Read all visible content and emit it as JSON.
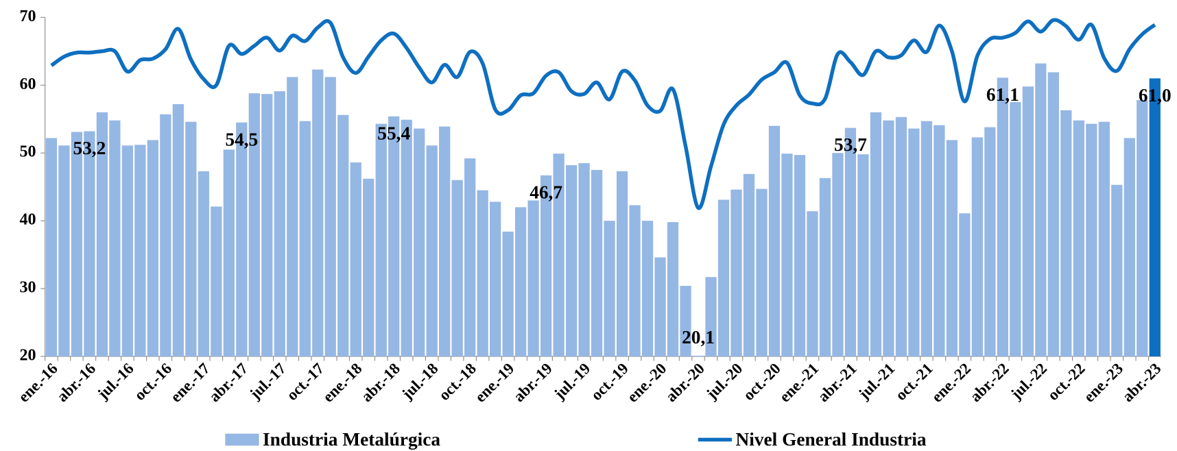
{
  "chart_data": {
    "type": "bar_line",
    "categories": [
      "ene.-16",
      null,
      null,
      "abr.-16",
      null,
      null,
      "jul.-16",
      null,
      null,
      "oct.-16",
      null,
      null,
      "ene.-17",
      null,
      null,
      "abr.-17",
      null,
      null,
      "jul.-17",
      null,
      null,
      "oct.-17",
      null,
      null,
      "ene.-18",
      null,
      null,
      "abr.-18",
      null,
      null,
      "jul.-18",
      null,
      null,
      "oct.-18",
      null,
      null,
      "ene.-19",
      null,
      null,
      "abr.-19",
      null,
      null,
      "jul.-19",
      null,
      null,
      "oct.-19",
      null,
      null,
      "ene.-20",
      null,
      null,
      "abr.-20",
      null,
      null,
      "jul.-20",
      null,
      null,
      "oct.-20",
      null,
      null,
      "ene.-21",
      null,
      null,
      "abr.-21",
      null,
      null,
      "jul.-21",
      null,
      null,
      "oct.-21",
      null,
      null,
      "ene.-22",
      null,
      null,
      "abr.-22",
      null,
      null,
      "jul.-22",
      null,
      null,
      "oct.-22",
      null,
      null,
      "ene.-23",
      null,
      null,
      "abr.-23"
    ],
    "series": [
      {
        "name": "Industria Metalúrgica",
        "kind": "bar",
        "color": "#95b7e4",
        "colors": [
          "#95b7e4",
          "#95b7e4",
          "#95b7e4",
          "#95b7e4",
          "#95b7e4",
          "#95b7e4",
          "#95b7e4",
          "#95b7e4",
          "#95b7e4",
          "#95b7e4",
          "#95b7e4",
          "#95b7e4",
          "#95b7e4",
          "#95b7e4",
          "#95b7e4",
          "#95b7e4",
          "#95b7e4",
          "#95b7e4",
          "#95b7e4",
          "#95b7e4",
          "#95b7e4",
          "#95b7e4",
          "#95b7e4",
          "#95b7e4",
          "#95b7e4",
          "#95b7e4",
          "#95b7e4",
          "#95b7e4",
          "#95b7e4",
          "#95b7e4",
          "#95b7e4",
          "#95b7e4",
          "#95b7e4",
          "#95b7e4",
          "#95b7e4",
          "#95b7e4",
          "#95b7e4",
          "#95b7e4",
          "#95b7e4",
          "#95b7e4",
          "#95b7e4",
          "#95b7e4",
          "#95b7e4",
          "#95b7e4",
          "#95b7e4",
          "#95b7e4",
          "#95b7e4",
          "#95b7e4",
          "#95b7e4",
          "#95b7e4",
          "#95b7e4",
          "#95b7e4",
          "#95b7e4",
          "#95b7e4",
          "#95b7e4",
          "#95b7e4",
          "#95b7e4",
          "#95b7e4",
          "#95b7e4",
          "#95b7e4",
          "#95b7e4",
          "#95b7e4",
          "#95b7e4",
          "#95b7e4",
          "#95b7e4",
          "#95b7e4",
          "#95b7e4",
          "#95b7e4",
          "#95b7e4",
          "#95b7e4",
          "#95b7e4",
          "#95b7e4",
          "#95b7e4",
          "#95b7e4",
          "#95b7e4",
          "#95b7e4",
          "#95b7e4",
          "#95b7e4",
          "#95b7e4",
          "#95b7e4",
          "#95b7e4",
          "#95b7e4",
          "#95b7e4",
          "#95b7e4",
          "#95b7e4",
          "#95b7e4",
          "#95b7e4",
          "#0e6fc0"
        ],
        "values": [
          52.2,
          51.1,
          53.1,
          53.2,
          56.0,
          54.8,
          51.1,
          51.2,
          51.9,
          55.7,
          57.2,
          54.6,
          47.3,
          42.1,
          50.5,
          54.5,
          58.8,
          58.7,
          59.1,
          61.2,
          54.7,
          62.3,
          61.2,
          55.6,
          48.6,
          46.2,
          54.3,
          55.4,
          54.9,
          53.6,
          51.1,
          53.9,
          46.0,
          49.2,
          44.5,
          42.8,
          38.4,
          42.0,
          43.0,
          46.7,
          49.9,
          48.2,
          48.5,
          47.5,
          40.0,
          47.3,
          42.3,
          40.0,
          34.6,
          39.8,
          30.4,
          20.1,
          31.7,
          43.1,
          44.6,
          46.9,
          44.7,
          54.0,
          49.9,
          49.7,
          41.4,
          46.3,
          50.0,
          53.7,
          49.8,
          56.0,
          54.8,
          55.3,
          53.6,
          54.7,
          54.1,
          51.9,
          41.1,
          52.3,
          53.8,
          61.1,
          57.5,
          59.8,
          63.2,
          61.9,
          56.3,
          54.8,
          54.3,
          54.6,
          45.3,
          52.2,
          57.8,
          61.0
        ],
        "value_labels": [
          null,
          null,
          null,
          "53,2",
          null,
          null,
          null,
          null,
          null,
          null,
          null,
          null,
          null,
          null,
          null,
          "54,5",
          null,
          null,
          null,
          null,
          null,
          null,
          null,
          null,
          null,
          null,
          null,
          "55,4",
          null,
          null,
          null,
          null,
          null,
          null,
          null,
          null,
          null,
          null,
          null,
          "46,7",
          null,
          null,
          null,
          null,
          null,
          null,
          null,
          null,
          null,
          null,
          null,
          "20,1",
          null,
          null,
          null,
          null,
          null,
          null,
          null,
          null,
          null,
          null,
          null,
          "53,7",
          null,
          null,
          null,
          null,
          null,
          null,
          null,
          null,
          null,
          null,
          null,
          "61,1",
          null,
          null,
          null,
          null,
          null,
          null,
          null,
          null,
          null,
          null,
          null,
          "61,0"
        ]
      },
      {
        "name": "Nivel General Industria",
        "kind": "line",
        "color": "#0e6fc0",
        "values": [
          62.9,
          64.2,
          64.8,
          64.8,
          65.0,
          65.0,
          62.0,
          63.7,
          63.9,
          65.3,
          68.3,
          63.8,
          60.9,
          60.0,
          65.8,
          64.6,
          65.8,
          67.0,
          65.1,
          67.3,
          66.5,
          68.5,
          69.2,
          64.1,
          61.8,
          64.2,
          66.6,
          67.6,
          65.5,
          62.6,
          60.4,
          63.0,
          61.2,
          64.9,
          63.2,
          56.4,
          56.3,
          58.5,
          58.8,
          61.4,
          61.9,
          59.1,
          58.7,
          60.4,
          57.9,
          62.0,
          60.7,
          57.0,
          56.2,
          59.4,
          51.0,
          41.9,
          48.0,
          54.2,
          57.0,
          58.6,
          60.8,
          61.9,
          63.3,
          58.5,
          57.3,
          58.0,
          64.6,
          63.4,
          61.5,
          65.0,
          64.1,
          64.4,
          66.6,
          64.9,
          68.8,
          65.0,
          57.6,
          64.3,
          66.8,
          67.0,
          67.7,
          69.4,
          67.9,
          69.6,
          68.7,
          66.7,
          68.9,
          64.0,
          62.1,
          65.3,
          67.5,
          68.9
        ]
      }
    ],
    "ylim": [
      20,
      70
    ],
    "yticks": [
      20,
      30,
      40,
      50,
      60,
      70
    ],
    "legend": "bottom"
  }
}
